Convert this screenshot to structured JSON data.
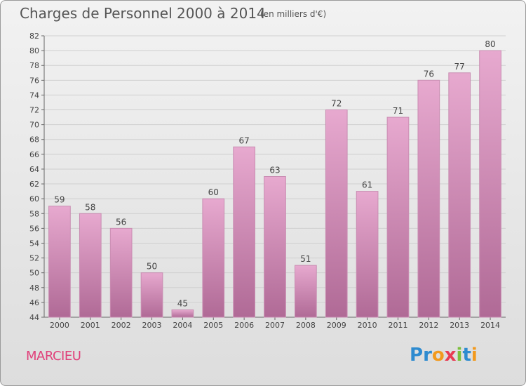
{
  "title": "Charges de Personnel 2000 à 2014",
  "subtitle": "(en milliers d'€)",
  "commune": "MARCIEU",
  "logo": {
    "text": "Proxiti",
    "letters": [
      {
        "char": "P",
        "color": "#2e8bd0"
      },
      {
        "char": "r",
        "color": "#2e8bd0"
      },
      {
        "char": "o",
        "color": "#f29a1e"
      },
      {
        "char": "x",
        "color": "#e83b53"
      },
      {
        "char": "i",
        "color": "#7bbf3b"
      },
      {
        "char": "t",
        "color": "#2e8bd0"
      },
      {
        "char": "i",
        "color": "#f29a1e"
      }
    ]
  },
  "colors": {
    "bar_top": "#e7a9cf",
    "bar_bottom": "#b06a96",
    "grid": "#cfcfcf",
    "commune": "#e0407a",
    "text": "#555555"
  },
  "chart_data": {
    "type": "bar",
    "title": "Charges de Personnel 2000 à 2014",
    "subtitle": "(en milliers d'€)",
    "categories": [
      "2000",
      "2001",
      "2002",
      "2003",
      "2004",
      "2005",
      "2006",
      "2007",
      "2008",
      "2009",
      "2010",
      "2011",
      "2012",
      "2013",
      "2014"
    ],
    "values": [
      59,
      58,
      56,
      50,
      45,
      60,
      67,
      63,
      51,
      72,
      61,
      71,
      76,
      77,
      80
    ],
    "ylim": [
      44,
      82
    ],
    "yticks": [
      44,
      46,
      48,
      50,
      52,
      54,
      56,
      58,
      60,
      62,
      64,
      66,
      68,
      70,
      72,
      74,
      76,
      78,
      80,
      82
    ],
    "grid": true,
    "xlabel": "",
    "ylabel": ""
  }
}
